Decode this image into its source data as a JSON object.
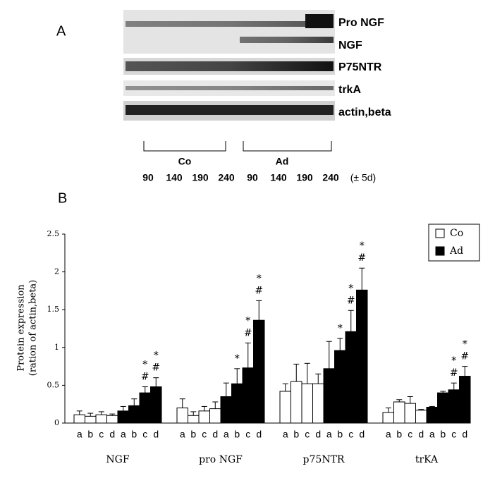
{
  "panel_a": {
    "label": "A",
    "bands": [
      "Pro NGF",
      "NGF",
      "P75NTR",
      "trkA",
      "actin,beta"
    ],
    "groups": [
      "Co",
      "Ad"
    ],
    "ages": [
      "90",
      "140",
      "190",
      "240"
    ],
    "age_note": "(± 5d)"
  },
  "chart_data": {
    "type": "bar",
    "panel_label": "B",
    "y_label": [
      "Protein expression",
      "(ration of actin,beta)"
    ],
    "categories": [
      "NGF",
      "pro NGF",
      "p75NTR",
      "trKA"
    ],
    "subcategories": [
      "a",
      "b",
      "c",
      "d"
    ],
    "series": [
      {
        "name": "Co",
        "color": "#ffffff",
        "values": [
          [
            0.11,
            0.09,
            0.11,
            0.1
          ],
          [
            0.2,
            0.1,
            0.16,
            0.19
          ],
          [
            0.42,
            0.55,
            0.52,
            0.52
          ],
          [
            0.14,
            0.28,
            0.26,
            0.17
          ]
        ],
        "errors": [
          [
            0.05,
            0.04,
            0.04,
            0.02
          ],
          [
            0.12,
            0.05,
            0.06,
            0.09
          ],
          [
            0.1,
            0.23,
            0.27,
            0.13
          ],
          [
            0.06,
            0.03,
            0.09,
            0.01
          ]
        ]
      },
      {
        "name": "Ad",
        "color": "#000000",
        "values": [
          [
            0.16,
            0.23,
            0.4,
            0.48
          ],
          [
            0.35,
            0.52,
            0.73,
            1.36
          ],
          [
            0.72,
            0.96,
            1.21,
            1.76
          ],
          [
            0.21,
            0.4,
            0.44,
            0.62
          ]
        ],
        "errors": [
          [
            0.06,
            0.09,
            0.08,
            0.12
          ],
          [
            0.18,
            0.2,
            0.33,
            0.26
          ],
          [
            0.36,
            0.16,
            0.28,
            0.29
          ],
          [
            0.01,
            0.02,
            0.09,
            0.13
          ]
        ],
        "annotations": [
          [
            null,
            null,
            [
              "*",
              "#"
            ],
            [
              "*",
              "#"
            ]
          ],
          [
            null,
            [
              "*"
            ],
            [
              "*",
              "#"
            ],
            [
              "*",
              "#"
            ]
          ],
          [
            null,
            [
              "*"
            ],
            [
              "*",
              "#"
            ],
            [
              "*",
              "#"
            ]
          ],
          [
            null,
            null,
            [
              "*",
              "#"
            ],
            [
              "*",
              "#"
            ]
          ]
        ]
      }
    ],
    "ylim": [
      0,
      2.5
    ],
    "yticks": [
      0,
      0.5,
      1,
      1.5,
      2,
      2.5
    ]
  }
}
